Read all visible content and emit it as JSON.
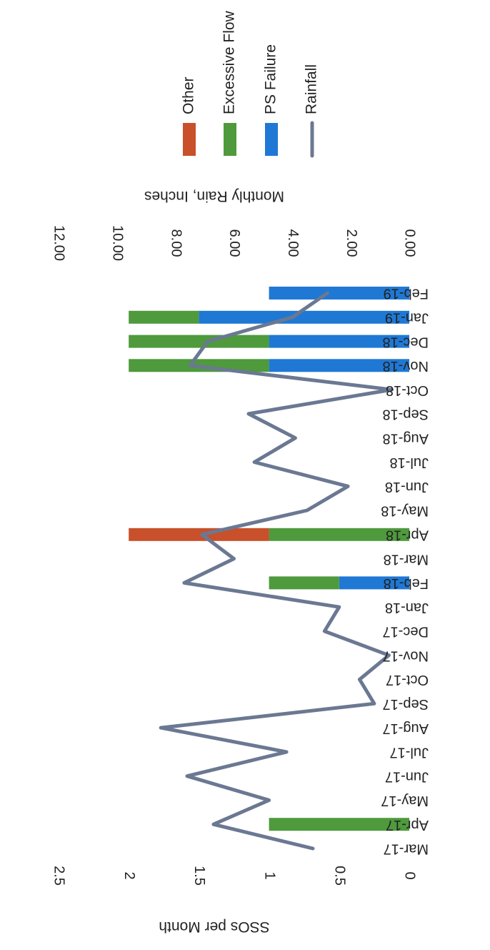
{
  "chart_data": {
    "type": "bar",
    "stacked": true,
    "orientation": "rotated-90-clockwise",
    "categories": [
      "Mar-17",
      "Apr-17",
      "May-17",
      "Jun-17",
      "Jul-17",
      "Aug-17",
      "Sep-17",
      "Oct-17",
      "Nov-17",
      "Dec-17",
      "Jan-18",
      "Feb-18",
      "Mar-18",
      "Apr-18",
      "May-18",
      "Jun-18",
      "Jul-18",
      "Aug-18",
      "Sep-18",
      "Oct-18",
      "Nov-18",
      "Dec-18",
      "Jan-19",
      "Feb-19"
    ],
    "series": [
      {
        "name": "PS Failure",
        "kind": "bar",
        "axis": "primary",
        "color": "#1f78d4",
        "values": [
          0,
          0,
          0,
          0,
          0,
          0,
          0,
          0,
          0,
          0,
          0,
          0.5,
          0,
          0,
          0,
          0,
          0,
          0,
          0,
          0,
          1,
          1,
          1.5,
          1
        ]
      },
      {
        "name": "Excessive Flow",
        "kind": "bar",
        "axis": "primary",
        "color": "#4e9a3c",
        "values": [
          0,
          1,
          0,
          0,
          0,
          0,
          0,
          0,
          0,
          0,
          0,
          0.5,
          0,
          1,
          0,
          0,
          0,
          0,
          0,
          0,
          1,
          1,
          0.5,
          0
        ]
      },
      {
        "name": "Other",
        "kind": "bar",
        "axis": "primary",
        "color": "#c8502a",
        "values": [
          0,
          0,
          0,
          0,
          0,
          0,
          0,
          0,
          0,
          0,
          0,
          0,
          0,
          1,
          0,
          0,
          0,
          0,
          0,
          0,
          0,
          0,
          0,
          0
        ]
      },
      {
        "name": "Rainfall",
        "kind": "line",
        "axis": "secondary",
        "color": "#6b7892",
        "values": [
          3.3,
          6.7,
          4.8,
          7.6,
          4.2,
          8.5,
          1.2,
          1.7,
          0.7,
          2.9,
          2.4,
          7.7,
          6.0,
          7.1,
          3.5,
          2.1,
          5.3,
          3.9,
          5.5,
          0.6,
          7.5,
          6.9,
          4.0,
          2.8
        ]
      }
    ],
    "y_primary": {
      "label": "SSOs per Month",
      "min": 0,
      "max": 2.5,
      "ticks": [
        "0",
        "0.5",
        "1",
        "1.5",
        "2",
        "2.5"
      ]
    },
    "y_secondary": {
      "label": "Monthly Rain, Inches",
      "min": 0,
      "max": 12,
      "ticks": [
        "0.00",
        "2.00",
        "4.00",
        "6.00",
        "8.00",
        "10.00",
        "12.00"
      ]
    },
    "legend": {
      "placement": "top-right",
      "entries": [
        "Other",
        "Excessive Flow",
        "PS Failure",
        "Rainfall"
      ]
    },
    "grid": false
  }
}
